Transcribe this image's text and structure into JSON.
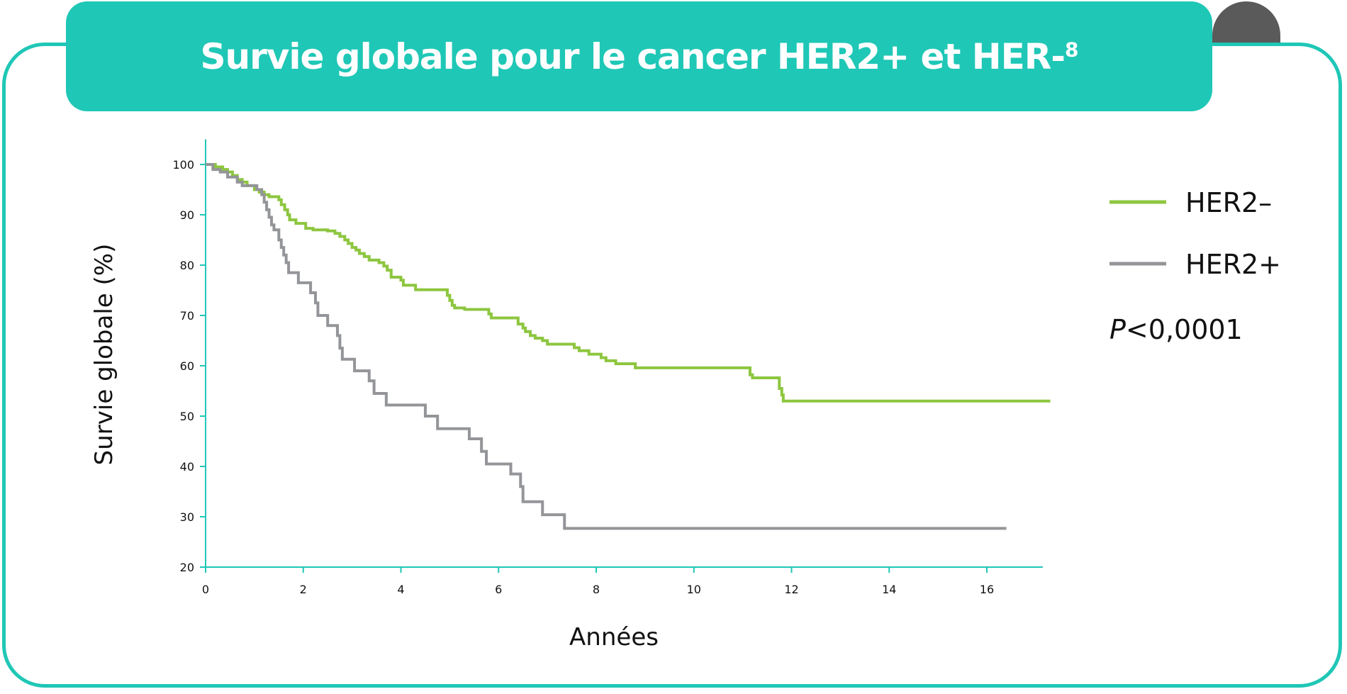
{
  "header": {
    "title": "Survie globale pour le cancer HER2+ et HER-",
    "title_sup": "8"
  },
  "chart_data": {
    "type": "line",
    "xlabel": "Années",
    "ylabel": "Survie globale (%)",
    "xlim": [
      0,
      17
    ],
    "ylim": [
      20,
      105
    ],
    "xticks": [
      0,
      2,
      4,
      6,
      8,
      10,
      12,
      14,
      16
    ],
    "yticks": [
      20,
      30,
      40,
      50,
      60,
      70,
      80,
      90,
      100
    ],
    "grid": false,
    "legend_position": "right",
    "annotation": {
      "italic": "P",
      "text": "<0,0001"
    },
    "series": [
      {
        "name": "HER2–",
        "color": "#8dc63f",
        "step": true,
        "points": [
          [
            0,
            100
          ],
          [
            0.2,
            99.5
          ],
          [
            0.35,
            99
          ],
          [
            0.45,
            98.5
          ],
          [
            0.55,
            97.8
          ],
          [
            0.65,
            97
          ],
          [
            0.75,
            96.5
          ],
          [
            0.85,
            95.8
          ],
          [
            1.0,
            95
          ],
          [
            1.1,
            94.5
          ],
          [
            1.2,
            94
          ],
          [
            1.3,
            93.6
          ],
          [
            1.5,
            93
          ],
          [
            1.55,
            92
          ],
          [
            1.62,
            91
          ],
          [
            1.68,
            90
          ],
          [
            1.72,
            89
          ],
          [
            1.85,
            88.3
          ],
          [
            2.05,
            87.3
          ],
          [
            2.2,
            87
          ],
          [
            2.5,
            86.8
          ],
          [
            2.65,
            86.3
          ],
          [
            2.75,
            85.7
          ],
          [
            2.85,
            85
          ],
          [
            2.92,
            84.3
          ],
          [
            3.0,
            83.5
          ],
          [
            3.08,
            83
          ],
          [
            3.15,
            82.3
          ],
          [
            3.25,
            81.7
          ],
          [
            3.35,
            81
          ],
          [
            3.55,
            80.5
          ],
          [
            3.65,
            79.8
          ],
          [
            3.72,
            79
          ],
          [
            3.8,
            77.6
          ],
          [
            4.0,
            77
          ],
          [
            4.05,
            76
          ],
          [
            4.3,
            75.1
          ],
          [
            4.95,
            74
          ],
          [
            5.0,
            73
          ],
          [
            5.05,
            72
          ],
          [
            5.1,
            71.5
          ],
          [
            5.3,
            71
          ],
          [
            5.3,
            71.2
          ],
          [
            5.8,
            70.3
          ],
          [
            5.85,
            69.5
          ],
          [
            6.4,
            68.3
          ],
          [
            6.5,
            67.5
          ],
          [
            6.55,
            66.8
          ],
          [
            6.65,
            66
          ],
          [
            6.75,
            65.5
          ],
          [
            6.9,
            65
          ],
          [
            7.0,
            64.3
          ],
          [
            7.55,
            63.6
          ],
          [
            7.65,
            63
          ],
          [
            7.85,
            62.3
          ],
          [
            8.1,
            61.6
          ],
          [
            8.2,
            61
          ],
          [
            8.4,
            60.4
          ],
          [
            8.8,
            59.6
          ],
          [
            11.15,
            58.2
          ],
          [
            11.2,
            57.6
          ],
          [
            11.75,
            55.5
          ],
          [
            11.8,
            54.2
          ],
          [
            11.83,
            53.0
          ],
          [
            17.3,
            53.0
          ]
        ]
      },
      {
        "name": "HER2+",
        "color": "#939598",
        "step": true,
        "points": [
          [
            0,
            100
          ],
          [
            0.15,
            99
          ],
          [
            0.3,
            98.5
          ],
          [
            0.45,
            97.5
          ],
          [
            0.65,
            96.5
          ],
          [
            0.75,
            95.8
          ],
          [
            1.05,
            95
          ],
          [
            1.15,
            94
          ],
          [
            1.2,
            92.5
          ],
          [
            1.25,
            91
          ],
          [
            1.3,
            89.5
          ],
          [
            1.35,
            88
          ],
          [
            1.4,
            87
          ],
          [
            1.5,
            85
          ],
          [
            1.55,
            83.5
          ],
          [
            1.6,
            82
          ],
          [
            1.65,
            80.5
          ],
          [
            1.7,
            78.5
          ],
          [
            1.9,
            76.5
          ],
          [
            2.15,
            74.5
          ],
          [
            2.25,
            72.5
          ],
          [
            2.3,
            70
          ],
          [
            2.5,
            68
          ],
          [
            2.7,
            66
          ],
          [
            2.75,
            63.5
          ],
          [
            2.8,
            61.3
          ],
          [
            3.05,
            59
          ],
          [
            3.35,
            57
          ],
          [
            3.45,
            54.5
          ],
          [
            3.7,
            52.2
          ],
          [
            4.5,
            50
          ],
          [
            4.75,
            47.5
          ],
          [
            5.4,
            45.5
          ],
          [
            5.65,
            43
          ],
          [
            5.75,
            40.5
          ],
          [
            6.25,
            38.5
          ],
          [
            6.45,
            36
          ],
          [
            6.5,
            33
          ],
          [
            6.9,
            30.4
          ],
          [
            7.35,
            27.7
          ],
          [
            16.4,
            27.7
          ]
        ]
      }
    ]
  }
}
